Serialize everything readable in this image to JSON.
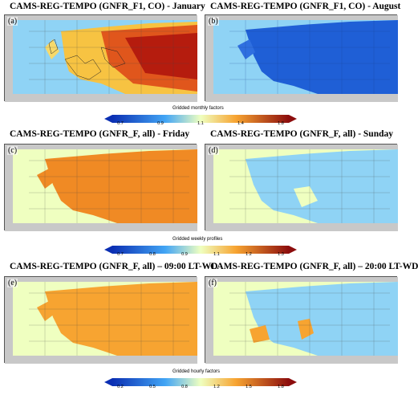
{
  "colors": {
    "sea_cyan": "#8fd3f5",
    "deep_blue": "#1f5fd6",
    "light_yellow": "#efffc0",
    "orange": "#f08a24",
    "orange_light": "#f7a431",
    "dark_red": "#b51c0e",
    "land_grey": "#c8c8c8"
  },
  "panels": [
    {
      "label": "(a)",
      "title": "CAMS-REG-TEMPO (GNFR_F1, CO) - January"
    },
    {
      "label": "(b)",
      "title": "CAMS-REG-TEMPO (GNFR_F1, CO) - August"
    },
    {
      "label": "(c)",
      "title": "CAMS-REG-TEMPO (GNFR_F, all) - Friday"
    },
    {
      "label": "(d)",
      "title": "CAMS-REG-TEMPO (GNFR_F, all) - Sunday"
    },
    {
      "label": "(e)",
      "title": "CAMS-REG-TEMPO (GNFR_F, all) – 09:00 LT-WD"
    },
    {
      "label": "(f)",
      "title": "CAMS-REG-TEMPO (GNFR_F, all) – 20:00 LT-WD"
    }
  ],
  "colorbars": [
    {
      "label": "Gridded monthly factors",
      "ticks": [
        "0.7",
        "0.9",
        "1.1",
        "1.4",
        "1.8"
      ]
    },
    {
      "label": "Gridded weekly profiles",
      "ticks": [
        "0.7",
        "0.8",
        "0.9",
        "1.1",
        "1.2",
        "1.3"
      ]
    },
    {
      "label": "Gridded hourly factors",
      "ticks": [
        "0.2",
        "0.5",
        "0.8",
        "1.2",
        "1.5",
        "1.8"
      ]
    }
  ]
}
